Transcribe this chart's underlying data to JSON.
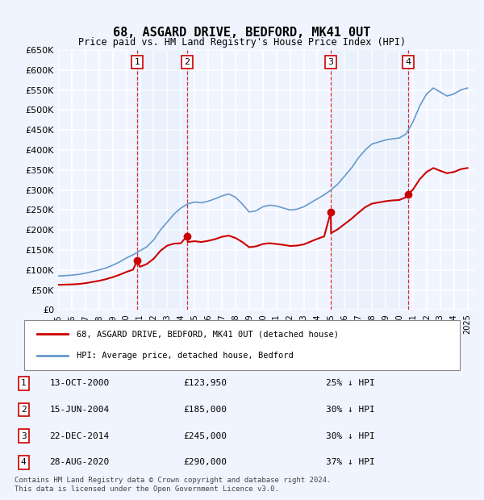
{
  "title": "68, ASGARD DRIVE, BEDFORD, MK41 0UT",
  "subtitle": "Price paid vs. HM Land Registry's House Price Index (HPI)",
  "legend_line1": "68, ASGARD DRIVE, BEDFORD, MK41 0UT (detached house)",
  "legend_line2": "HPI: Average price, detached house, Bedford",
  "footer": "Contains HM Land Registry data © Crown copyright and database right 2024.\nThis data is licensed under the Open Government Licence v3.0.",
  "ylabel": "",
  "ylim": [
    0,
    650000
  ],
  "yticks": [
    0,
    50000,
    100000,
    150000,
    200000,
    250000,
    300000,
    350000,
    400000,
    450000,
    500000,
    550000,
    600000,
    650000
  ],
  "ytick_labels": [
    "£0",
    "£50K",
    "£100K",
    "£150K",
    "£200K",
    "£250K",
    "£300K",
    "£350K",
    "£400K",
    "£450K",
    "£500K",
    "£550K",
    "£600K",
    "£650K"
  ],
  "bg_color": "#f0f4ff",
  "plot_bg_color": "#f0f4ff",
  "grid_color": "#ffffff",
  "sale_color": "#cc0000",
  "hpi_color": "#6699cc",
  "sales": [
    {
      "label": "1",
      "date": "13-OCT-2000",
      "price": 123950,
      "pct": "25%",
      "x": 2000.79
    },
    {
      "label": "2",
      "date": "15-JUN-2004",
      "price": 185000,
      "pct": "30%",
      "x": 2004.46
    },
    {
      "label": "3",
      "date": "22-DEC-2014",
      "price": 245000,
      "pct": "30%",
      "x": 2014.98
    },
    {
      "label": "4",
      "date": "28-AUG-2020",
      "price": 290000,
      "pct": "37%",
      "x": 2020.66
    }
  ],
  "hpi_data": {
    "x": [
      1995,
      1995.5,
      1996,
      1996.5,
      1997,
      1997.5,
      1998,
      1998.5,
      1999,
      1999.5,
      2000,
      2000.5,
      2001,
      2001.5,
      2002,
      2002.5,
      2003,
      2003.5,
      2004,
      2004.5,
      2005,
      2005.5,
      2006,
      2006.5,
      2007,
      2007.5,
      2008,
      2008.5,
      2009,
      2009.5,
      2010,
      2010.5,
      2011,
      2011.5,
      2012,
      2012.5,
      2013,
      2013.5,
      2014,
      2014.5,
      2015,
      2015.5,
      2016,
      2016.5,
      2017,
      2017.5,
      2018,
      2018.5,
      2019,
      2019.5,
      2020,
      2020.5,
      2021,
      2021.5,
      2022,
      2022.5,
      2023,
      2023.5,
      2024,
      2024.5,
      2025
    ],
    "y": [
      85000,
      86000,
      87000,
      89000,
      92000,
      96000,
      100000,
      105000,
      112000,
      120000,
      130000,
      138000,
      148000,
      158000,
      175000,
      200000,
      220000,
      240000,
      255000,
      265000,
      270000,
      268000,
      272000,
      278000,
      285000,
      290000,
      282000,
      265000,
      245000,
      248000,
      258000,
      262000,
      260000,
      255000,
      250000,
      252000,
      258000,
      268000,
      278000,
      288000,
      300000,
      315000,
      335000,
      355000,
      380000,
      400000,
      415000,
      420000,
      425000,
      428000,
      430000,
      440000,
      470000,
      510000,
      540000,
      555000,
      545000,
      535000,
      540000,
      550000,
      555000
    ]
  },
  "red_data": {
    "x": [
      1995,
      1995.5,
      1996,
      1996.5,
      1997,
      1997.5,
      1998,
      1998.5,
      1999,
      1999.5,
      2000,
      2000.5,
      2000.79,
      2001,
      2001.5,
      2002,
      2002.5,
      2003,
      2003.5,
      2004,
      2004.46,
      2004.5,
      2005,
      2005.5,
      2006,
      2006.5,
      2007,
      2007.5,
      2008,
      2008.5,
      2009,
      2009.5,
      2010,
      2010.5,
      2011,
      2011.5,
      2012,
      2012.5,
      2013,
      2013.5,
      2014,
      2014.5,
      2014.98,
      2015,
      2015.5,
      2016,
      2016.5,
      2017,
      2017.5,
      2018,
      2018.5,
      2019,
      2019.5,
      2020,
      2020.5,
      2020.66,
      2021,
      2021.5,
      2022,
      2022.5,
      2023,
      2023.5,
      2024,
      2024.5,
      2025
    ],
    "y": [
      63000,
      63500,
      64000,
      65000,
      67000,
      70000,
      73000,
      77000,
      82000,
      88000,
      95000,
      101000,
      123950,
      108000,
      115000,
      128000,
      148000,
      161000,
      166000,
      167000,
      185000,
      170000,
      172000,
      170000,
      173000,
      177000,
      183000,
      186000,
      180000,
      170000,
      157000,
      159000,
      165000,
      167000,
      165000,
      163000,
      160000,
      161000,
      164000,
      171000,
      178000,
      184000,
      245000,
      192000,
      202000,
      215000,
      228000,
      243000,
      257000,
      266000,
      269000,
      272000,
      274000,
      275000,
      282000,
      290000,
      301000,
      327000,
      345000,
      355000,
      348000,
      342000,
      345000,
      352000,
      355000
    ]
  },
  "table_data": [
    [
      "1",
      "13-OCT-2000",
      "£123,950",
      "25% ↓ HPI"
    ],
    [
      "2",
      "15-JUN-2004",
      "£185,000",
      "30% ↓ HPI"
    ],
    [
      "3",
      "22-DEC-2014",
      "£245,000",
      "30% ↓ HPI"
    ],
    [
      "4",
      "28-AUG-2020",
      "£290,000",
      "37% ↓ HPI"
    ]
  ]
}
